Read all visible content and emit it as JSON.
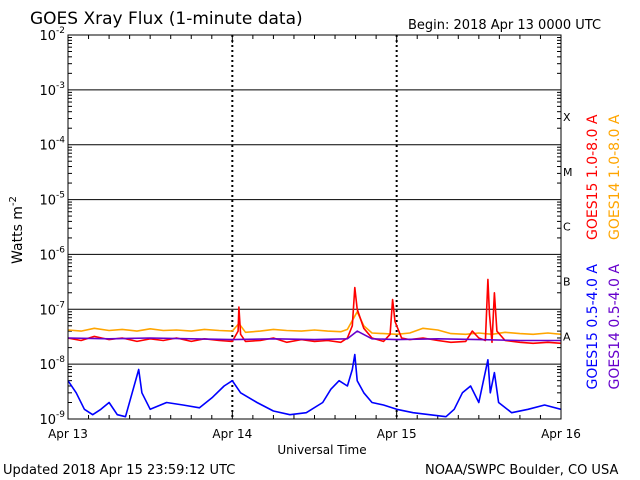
{
  "header": {
    "title": "GOES Xray Flux (1-minute data)",
    "begin": "Begin:  2018 Apr 13 0000 UTC"
  },
  "footer": {
    "updated": "Updated 2018 Apr 15 23:59:12 UTC",
    "credit": "NOAA/SWPC Boulder, CO USA"
  },
  "chart_data": {
    "type": "line",
    "title": "GOES Xray Flux (1-minute data)",
    "xlabel": "Universal Time",
    "ylabel": "Watts m",
    "ylabel_exponent": "-2",
    "y_scale": "log",
    "ylim": [
      1e-09,
      0.01
    ],
    "y_ticks": [
      {
        "value": 0.01,
        "base": "10",
        "exp": "-2"
      },
      {
        "value": 0.001,
        "base": "10",
        "exp": "-3"
      },
      {
        "value": 0.0001,
        "base": "10",
        "exp": "-4"
      },
      {
        "value": 1e-05,
        "base": "10",
        "exp": "-5"
      },
      {
        "value": 1e-06,
        "base": "10",
        "exp": "-6"
      },
      {
        "value": 1e-07,
        "base": "10",
        "exp": "-7"
      },
      {
        "value": 1e-08,
        "base": "10",
        "exp": "-8"
      },
      {
        "value": 1e-09,
        "base": "10",
        "exp": "-9"
      }
    ],
    "x_ticks": [
      "Apr 13",
      "Apr 14",
      "Apr 15",
      "Apr 16"
    ],
    "xlim_days": [
      0,
      3
    ],
    "flare_classes": [
      {
        "label": "X",
        "value": 0.00032
      },
      {
        "label": "M",
        "value": 3.2e-05
      },
      {
        "label": "C",
        "value": 3.2e-06
      },
      {
        "label": "B",
        "value": 3.2e-07
      },
      {
        "label": "A",
        "value": 3.2e-08
      }
    ],
    "grid": true,
    "legend": [
      {
        "name": "GOES15 1.0-8.0 A",
        "color": "#ff0000",
        "position": "right-upper"
      },
      {
        "name": "GOES14 1.0-8.0 A",
        "color": "#ffa500",
        "position": "right-upper"
      },
      {
        "name": "GOES15 0.5-4.0 A",
        "color": "#0000ff",
        "position": "right-lower"
      },
      {
        "name": "GOES14 0.5-4.0 A",
        "color": "#6600cc",
        "position": "right-lower"
      }
    ],
    "series": [
      {
        "name": "GOES14 1.0-8.0 A",
        "color": "#ffa500",
        "points": [
          [
            0,
            4.2e-08
          ],
          [
            0.08,
            4e-08
          ],
          [
            0.16,
            4.5e-08
          ],
          [
            0.25,
            4.1e-08
          ],
          [
            0.33,
            4.3e-08
          ],
          [
            0.42,
            4e-08
          ],
          [
            0.5,
            4.4e-08
          ],
          [
            0.58,
            4.1e-08
          ],
          [
            0.66,
            4.2e-08
          ],
          [
            0.75,
            4e-08
          ],
          [
            0.83,
            4.3e-08
          ],
          [
            0.92,
            4.1e-08
          ],
          [
            1.0,
            4e-08
          ],
          [
            1.04,
            5.5e-08
          ],
          [
            1.08,
            3.8e-08
          ],
          [
            1.17,
            4e-08
          ],
          [
            1.25,
            4.3e-08
          ],
          [
            1.33,
            4.1e-08
          ],
          [
            1.42,
            4e-08
          ],
          [
            1.5,
            4.2e-08
          ],
          [
            1.58,
            4e-08
          ],
          [
            1.66,
            3.9e-08
          ],
          [
            1.7,
            4.3e-08
          ],
          [
            1.76,
            9e-08
          ],
          [
            1.8,
            5e-08
          ],
          [
            1.85,
            3.7e-08
          ],
          [
            1.92,
            3.6e-08
          ],
          [
            2.0,
            3.5e-08
          ],
          [
            2.08,
            3.7e-08
          ],
          [
            2.16,
            4.5e-08
          ],
          [
            2.25,
            4.2e-08
          ],
          [
            2.33,
            3.6e-08
          ],
          [
            2.42,
            3.5e-08
          ],
          [
            2.5,
            3.7e-08
          ],
          [
            2.58,
            3.5e-08
          ],
          [
            2.66,
            3.8e-08
          ],
          [
            2.75,
            3.6e-08
          ],
          [
            2.83,
            3.5e-08
          ],
          [
            2.92,
            3.7e-08
          ],
          [
            3.0,
            3.5e-08
          ]
        ]
      },
      {
        "name": "GOES15 1.0-8.0 A",
        "color": "#ff0000",
        "points": [
          [
            0,
            3e-08
          ],
          [
            0.08,
            2.7e-08
          ],
          [
            0.16,
            3.2e-08
          ],
          [
            0.25,
            2.8e-08
          ],
          [
            0.33,
            3e-08
          ],
          [
            0.42,
            2.6e-08
          ],
          [
            0.5,
            2.9e-08
          ],
          [
            0.58,
            2.7e-08
          ],
          [
            0.66,
            3e-08
          ],
          [
            0.75,
            2.6e-08
          ],
          [
            0.83,
            2.9e-08
          ],
          [
            0.92,
            2.7e-08
          ],
          [
            1.0,
            2.6e-08
          ],
          [
            1.035,
            4e-08
          ],
          [
            1.04,
            1.1e-07
          ],
          [
            1.05,
            3.5e-08
          ],
          [
            1.08,
            2.6e-08
          ],
          [
            1.17,
            2.7e-08
          ],
          [
            1.25,
            3e-08
          ],
          [
            1.33,
            2.5e-08
          ],
          [
            1.42,
            2.8e-08
          ],
          [
            1.5,
            2.6e-08
          ],
          [
            1.58,
            2.7e-08
          ],
          [
            1.66,
            2.5e-08
          ],
          [
            1.7,
            3e-08
          ],
          [
            1.73,
            5e-08
          ],
          [
            1.745,
            2.5e-07
          ],
          [
            1.76,
            1e-07
          ],
          [
            1.8,
            4.5e-08
          ],
          [
            1.85,
            3e-08
          ],
          [
            1.92,
            2.6e-08
          ],
          [
            1.96,
            3.5e-08
          ],
          [
            1.975,
            1.5e-07
          ],
          [
            1.99,
            6e-08
          ],
          [
            2.03,
            3e-08
          ],
          [
            2.08,
            2.8e-08
          ],
          [
            2.16,
            3e-08
          ],
          [
            2.25,
            2.7e-08
          ],
          [
            2.33,
            2.5e-08
          ],
          [
            2.42,
            2.6e-08
          ],
          [
            2.46,
            4e-08
          ],
          [
            2.5,
            3e-08
          ],
          [
            2.54,
            2.7e-08
          ],
          [
            2.555,
            3.5e-07
          ],
          [
            2.565,
            8e-08
          ],
          [
            2.58,
            2.5e-08
          ],
          [
            2.595,
            2e-07
          ],
          [
            2.61,
            4e-08
          ],
          [
            2.66,
            2.7e-08
          ],
          [
            2.75,
            2.5e-08
          ],
          [
            2.83,
            2.4e-08
          ],
          [
            2.92,
            2.5e-08
          ],
          [
            3.0,
            2.4e-08
          ]
        ]
      },
      {
        "name": "GOES14 0.5-4.0 A",
        "color": "#6600cc",
        "points": [
          [
            0,
            3e-08
          ],
          [
            0.25,
            2.9e-08
          ],
          [
            0.5,
            3e-08
          ],
          [
            0.75,
            2.9e-08
          ],
          [
            1.0,
            2.8e-08
          ],
          [
            1.25,
            2.9e-08
          ],
          [
            1.5,
            2.8e-08
          ],
          [
            1.7,
            2.9e-08
          ],
          [
            1.76,
            4e-08
          ],
          [
            1.85,
            2.9e-08
          ],
          [
            2.0,
            2.8e-08
          ],
          [
            2.25,
            2.9e-08
          ],
          [
            2.5,
            2.8e-08
          ],
          [
            2.75,
            2.7e-08
          ],
          [
            3.0,
            2.7e-08
          ]
        ]
      },
      {
        "name": "GOES15 0.5-4.0 A",
        "color": "#0000ff",
        "points": [
          [
            0,
            5e-09
          ],
          [
            0.05,
            3e-09
          ],
          [
            0.1,
            1.5e-09
          ],
          [
            0.15,
            1.2e-09
          ],
          [
            0.2,
            1.5e-09
          ],
          [
            0.25,
            2e-09
          ],
          [
            0.3,
            1.2e-09
          ],
          [
            0.35,
            1.1e-09
          ],
          [
            0.43,
            8e-09
          ],
          [
            0.45,
            3e-09
          ],
          [
            0.5,
            1.5e-09
          ],
          [
            0.6,
            2e-09
          ],
          [
            0.7,
            1.8e-09
          ],
          [
            0.8,
            1.6e-09
          ],
          [
            0.88,
            2.5e-09
          ],
          [
            0.95,
            4e-09
          ],
          [
            1.0,
            5e-09
          ],
          [
            1.05,
            3e-09
          ],
          [
            1.15,
            2e-09
          ],
          [
            1.25,
            1.4e-09
          ],
          [
            1.35,
            1.2e-09
          ],
          [
            1.45,
            1.3e-09
          ],
          [
            1.55,
            2e-09
          ],
          [
            1.6,
            3.5e-09
          ],
          [
            1.65,
            5e-09
          ],
          [
            1.7,
            4e-09
          ],
          [
            1.73,
            8e-09
          ],
          [
            1.745,
            1.5e-08
          ],
          [
            1.76,
            5e-09
          ],
          [
            1.8,
            3e-09
          ],
          [
            1.85,
            2e-09
          ],
          [
            1.92,
            1.8e-09
          ],
          [
            2.0,
            1.5e-09
          ],
          [
            2.1,
            1.3e-09
          ],
          [
            2.2,
            1.2e-09
          ],
          [
            2.3,
            1.1e-09
          ],
          [
            2.35,
            1.5e-09
          ],
          [
            2.4,
            3e-09
          ],
          [
            2.45,
            4e-09
          ],
          [
            2.5,
            2e-09
          ],
          [
            2.555,
            1.2e-08
          ],
          [
            2.57,
            3e-09
          ],
          [
            2.595,
            7e-09
          ],
          [
            2.62,
            2e-09
          ],
          [
            2.7,
            1.3e-09
          ],
          [
            2.8,
            1.5e-09
          ],
          [
            2.9,
            1.8e-09
          ],
          [
            3.0,
            1.5e-09
          ]
        ]
      }
    ]
  }
}
